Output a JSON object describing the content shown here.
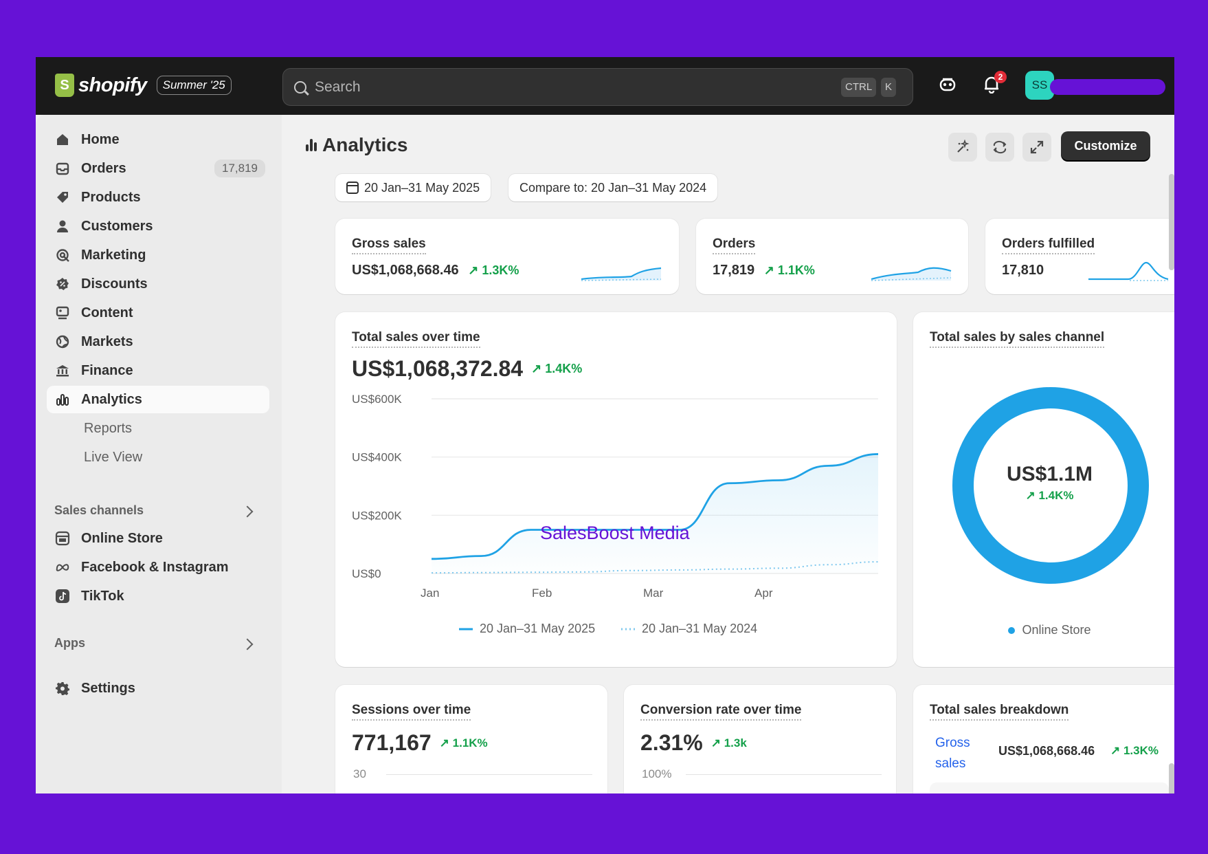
{
  "brand": {
    "name": "shopify",
    "edition": "Summer '25"
  },
  "search": {
    "placeholder": "Search",
    "key1": "CTRL",
    "key2": "K"
  },
  "topbar": {
    "notification_count": "2",
    "avatar_initials": "SS"
  },
  "sidebar": {
    "items": [
      {
        "label": "Home",
        "icon": "home-icon"
      },
      {
        "label": "Orders",
        "icon": "orders-icon",
        "badge": "17,819"
      },
      {
        "label": "Products",
        "icon": "tag-icon"
      },
      {
        "label": "Customers",
        "icon": "person-icon"
      },
      {
        "label": "Marketing",
        "icon": "target-icon"
      },
      {
        "label": "Discounts",
        "icon": "discount-icon"
      },
      {
        "label": "Content",
        "icon": "content-icon"
      },
      {
        "label": "Markets",
        "icon": "globe-icon"
      },
      {
        "label": "Finance",
        "icon": "bank-icon"
      },
      {
        "label": "Analytics",
        "icon": "bar-chart-icon"
      }
    ],
    "sub_items": [
      "Reports",
      "Live View"
    ],
    "sales_channels_heading": "Sales channels",
    "channels": [
      {
        "label": "Online Store",
        "icon": "store-icon"
      },
      {
        "label": "Facebook & Instagram",
        "icon": "meta-icon"
      },
      {
        "label": "TikTok",
        "icon": "tiktok-icon"
      }
    ],
    "apps_heading": "Apps",
    "settings_label": "Settings"
  },
  "page": {
    "title": "Analytics",
    "customize_label": "Customize",
    "date_range": "20 Jan–31 May 2025",
    "compare_range": "Compare to: 20 Jan–31 May 2024"
  },
  "kpis": [
    {
      "title": "Gross sales",
      "value": "US$1,068,668.46",
      "delta": "1.3K%"
    },
    {
      "title": "Orders",
      "value": "17,819",
      "delta": "1.1K%"
    },
    {
      "title": "Orders fulfilled",
      "value": "17,810",
      "delta": ""
    }
  ],
  "total_sales": {
    "title": "Total sales over time",
    "value": "US$1,068,372.84",
    "delta": "1.4K%"
  },
  "chart_data": {
    "type": "line",
    "x": [
      "Jan 20",
      "Feb 1",
      "Feb 15",
      "Mar 1",
      "Mar 15",
      "Apr 1",
      "Apr 15",
      "May 1",
      "May 15",
      "May 31"
    ],
    "series": [
      {
        "name": "20 Jan–31 May 2025",
        "values": [
          50,
          60,
          150,
          150,
          150,
          150,
          310,
          320,
          370,
          410
        ],
        "color": "#1fa2e5",
        "style": "solid"
      },
      {
        "name": "20 Jan–31 May 2024",
        "values": [
          2,
          3,
          4,
          5,
          10,
          12,
          15,
          18,
          30,
          40
        ],
        "color": "#7ec8ee",
        "style": "dotted"
      }
    ],
    "ytick_labels": [
      "US$600K",
      "US$400K",
      "US$200K",
      "US$0"
    ],
    "ytick_values": [
      600,
      400,
      200,
      0
    ],
    "xtick_labels": [
      "Jan",
      "Feb",
      "Mar",
      "Apr"
    ],
    "ylim": [
      0,
      600
    ],
    "grid": true,
    "legend": "bottom"
  },
  "sales_channel": {
    "title": "Total sales by sales channel",
    "center_value": "US$1.1M",
    "delta": "1.4K%",
    "legend": "Online Store",
    "slices": [
      {
        "label": "Online Store",
        "value": 100,
        "color": "#1fa2e5"
      }
    ]
  },
  "sessions": {
    "title": "Sessions over time",
    "value": "771,167",
    "delta": "1.1K%",
    "axis_top": "30"
  },
  "conversion": {
    "title": "Conversion rate over time",
    "value": "2.31%",
    "delta": "1.3k",
    "axis_top": "100%"
  },
  "breakdown": {
    "title": "Total sales breakdown",
    "link": "Gross sales",
    "value": "US$1,068,668.46",
    "delta": "1.3K%"
  },
  "watermark": "SalesBoost Media"
}
